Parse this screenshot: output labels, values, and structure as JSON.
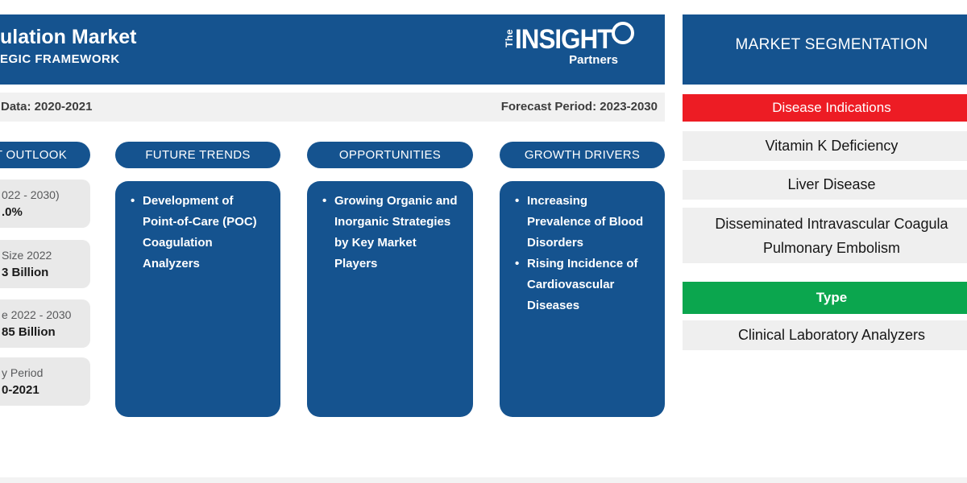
{
  "colors": {
    "brand_blue": "#15538f",
    "disease_red": "#ed1c24",
    "type_green": "#0ba64e",
    "row_gray": "#efefef"
  },
  "header": {
    "title_fragment": "ulation Market",
    "subtitle_fragment": "EGIC FRAMEWORK",
    "logo": {
      "the": "The",
      "insight": "INSIGHT",
      "partners": "Partners"
    }
  },
  "period_bar": {
    "historic_fragment": "Data: 2020-2021",
    "forecast": "Forecast Period: 2023-2030"
  },
  "columns": {
    "outlook": {
      "pill_fragment": "T OUTLOOK",
      "stats": [
        {
          "line1": "022 - 2030)",
          "line2": ".0%"
        },
        {
          "line1": "Size 2022",
          "line2": "3 Billion"
        },
        {
          "line1": "e 2022 - 2030",
          "line2": "85 Billion"
        },
        {
          "line1": "y Period",
          "line2": "0-2021"
        }
      ]
    },
    "future_trends": {
      "pill": "FUTURE TRENDS",
      "bullets": [
        "Development of Point-of-Care (POC) Coagulation Analyzers"
      ]
    },
    "opportunities": {
      "pill": "OPPORTUNITIES",
      "bullets": [
        "Growing Organic and Inorganic Strategies by Key Market Players"
      ]
    },
    "growth_drivers": {
      "pill": "GROWTH DRIVERS",
      "bullets": [
        "Increasing Prevalence of Blood Disorders",
        "Rising Incidence of Cardiovascular Diseases"
      ]
    }
  },
  "segmentation": {
    "title": "MARKET SEGMENTATION",
    "groups": [
      {
        "header": "Disease Indications",
        "items": [
          "Vitamin K Deficiency",
          "Liver Disease",
          {
            "lines": [
              "Disseminated Intravascular Coagula",
              "Pulmonary Embolism"
            ]
          }
        ]
      },
      {
        "header": "Type",
        "items": [
          "Clinical Laboratory Analyzers"
        ]
      }
    ]
  }
}
